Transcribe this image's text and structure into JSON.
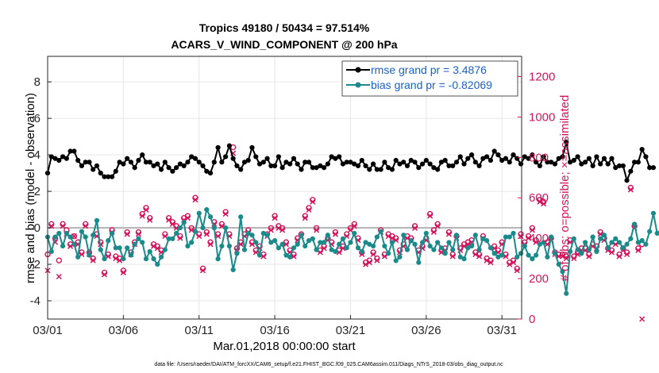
{
  "chart_data": {
    "type": "line",
    "title_line1": "Tropics 49180 / 50434 = 97.514%",
    "title_line2": "ACARS_V_WIND_COMPONENT @ 200 hPa",
    "xlabel": "Mar.01,2018 00:00:00 start",
    "ylabel_left": "rmse and bias (model - observation)",
    "ylabel_right": "# of obs: o=possible; ×=assimilated",
    "x_tick_labels": [
      "03/01",
      "03/06",
      "03/11",
      "03/16",
      "03/21",
      "03/26",
      "03/31"
    ],
    "y_left_ticks": [
      "-4",
      "-2",
      "0",
      "2",
      "4",
      "6",
      "8"
    ],
    "y_right_ticks": [
      "0",
      "200",
      "400",
      "600",
      "800",
      "1000",
      "1200"
    ],
    "xlim": [
      0,
      31.3
    ],
    "ylim_left": [
      -5,
      9.4
    ],
    "ylim_right": [
      0,
      1300
    ],
    "x_step_days": 0.25,
    "x_start": 0,
    "footnote": "data file: /Users/raeder/DAI/ATM_forcXX/CAM6_setup/f.e21.FHIST_BGC.f09_025.CAM6assim.011/Diags_NTrS_2018-03/obs_diag_output.nc",
    "colors": {
      "rmse": "#000000",
      "bias": "#1a8a8a",
      "counts": "#d6145c",
      "zero_line": "#b0b0b0",
      "legend_text": "#1a5fd0"
    },
    "series": [
      {
        "name": "rmse",
        "legend": "rmse grand pr = 3.4876",
        "values": [
          3.0,
          3.9,
          3.8,
          3.7,
          3.9,
          3.8,
          4.2,
          4.2,
          3.7,
          3.4,
          3.6,
          3.6,
          3.2,
          3.4,
          3.0,
          2.8,
          2.8,
          2.8,
          3.1,
          3.6,
          3.5,
          3.8,
          3.6,
          3.3,
          3.7,
          4.0,
          3.6,
          3.6,
          3.4,
          3.5,
          3.2,
          3.6,
          3.3,
          3.1,
          3.3,
          3.5,
          3.4,
          3.6,
          3.9,
          3.8,
          3.6,
          3.4,
          3.1,
          3.0,
          3.6,
          4.4,
          3.6,
          3.9,
          4.5,
          3.8,
          3.4,
          3.2,
          3.6,
          3.7,
          4.4,
          3.9,
          3.5,
          3.6,
          3.8,
          3.4,
          3.4,
          3.9,
          3.3,
          3.6,
          3.5,
          3.8,
          3.5,
          3.2,
          3.6,
          3.6,
          3.3,
          3.3,
          3.4,
          3.3,
          3.5,
          3.9,
          3.8,
          3.9,
          3.5,
          3.6,
          3.6,
          3.5,
          3.4,
          3.7,
          3.4,
          3.2,
          3.5,
          3.2,
          3.2,
          3.6,
          3.3,
          3.2,
          3.7,
          3.5,
          3.6,
          3.4,
          3.7,
          3.6,
          3.3,
          3.5,
          3.7,
          3.5,
          3.3,
          3.2,
          3.6,
          3.7,
          3.4,
          3.4,
          3.6,
          3.9,
          3.5,
          3.8,
          4.0,
          3.6,
          3.4,
          3.8,
          3.9,
          3.7,
          4.2,
          4.0,
          3.7,
          3.8,
          3.6,
          4.0,
          3.8,
          3.5,
          3.9,
          3.8,
          4.0,
          3.6,
          3.4,
          3.9,
          3.6,
          3.6,
          3.5,
          3.8,
          3.9,
          4.7,
          3.6,
          3.7,
          3.9,
          3.5,
          3.6,
          3.8,
          3.4,
          3.9,
          3.5,
          3.8,
          3.5,
          3.8,
          3.3,
          3.4,
          3.4,
          2.6,
          3.1,
          3.6,
          3.6,
          4.3,
          3.9,
          3.3,
          3.3
        ],
        "marker": "filled-circle"
      },
      {
        "name": "bias",
        "legend": "bias grand pr = -0.82069",
        "values": [
          -0.5,
          -1.3,
          -0.5,
          -0.3,
          -1.0,
          -0.3,
          -0.5,
          -0.9,
          -1.6,
          -0.2,
          -0.5,
          -1.5,
          -0.4,
          0.4,
          -1.2,
          -1.7,
          -0.7,
          -0.3,
          -1.1,
          -1.1,
          -1.7,
          -1.1,
          -1.5,
          -0.9,
          -0.6,
          -0.8,
          -1.7,
          -1.3,
          -1.7,
          -2.0,
          -1.6,
          -1.2,
          -0.6,
          -0.6,
          -0.3,
          0.0,
          0.3,
          -1.0,
          -0.8,
          -0.2,
          0.8,
          0.0,
          1.0,
          0.6,
          0.0,
          -1.7,
          -1.0,
          0.0,
          -1.0,
          -2.3,
          -1.4,
          0.6,
          -1.2,
          -0.3,
          -0.4,
          -0.8,
          -1.5,
          -0.3,
          -0.4,
          -0.8,
          -0.7,
          -1.1,
          -0.9,
          -1.5,
          -1.6,
          -1.1,
          -0.9,
          -0.4,
          -1.0,
          -0.7,
          -0.6,
          -1.2,
          -0.8,
          -0.8,
          -0.4,
          -1.2,
          -1.3,
          -0.9,
          -0.6,
          -1.1,
          -0.8,
          -0.3,
          -1.1,
          -1.3,
          -0.8,
          -0.9,
          -1.0,
          -0.5,
          -0.2,
          -1.0,
          -1.4,
          -0.8,
          -1.8,
          -1.6,
          -0.4,
          -1.2,
          -0.7,
          -0.9,
          -1.9,
          -0.8,
          -0.3,
          -1.0,
          -1.2,
          -0.8,
          -1.1,
          -1.4,
          -0.8,
          -1.2,
          -0.4,
          -1.6,
          -1.7,
          -1.1,
          -1.0,
          -0.4,
          -1.2,
          -0.6,
          -0.7,
          -1.1,
          -1.4,
          -1.6,
          -1.5,
          -0.5,
          -0.5,
          -0.3,
          -1.6,
          -1.4,
          -1.0,
          -1.5,
          -1.7,
          -1.5,
          -0.9,
          -0.8,
          -1.6,
          -0.5,
          -1.4,
          -2.0,
          -2.4,
          -3.6,
          -1.3,
          -0.6,
          -1.2,
          -1.4,
          -0.8,
          -1.2,
          -0.5,
          -1.3,
          -0.6,
          -0.4,
          -1.1,
          -0.8,
          -0.6,
          -0.8,
          -1.1,
          -0.9,
          -0.6,
          0.2,
          -0.8,
          -0.7,
          -0.9,
          -0.2,
          0.8,
          -0.3,
          -0.2
        ],
        "marker": "filled-circle"
      }
    ],
    "obs_possible": {
      "marker": "open-circle",
      "values": [
        320,
        470,
        400,
        290,
        470,
        440,
        370,
        410,
        380,
        330,
        470,
        330,
        300,
        420,
        380,
        230,
        320,
        440,
        310,
        300,
        240,
        430,
        330,
        380,
        430,
        520,
        550,
        500,
        370,
        360,
        340,
        420,
        500,
        480,
        460,
        410,
        500,
        510,
        450,
        600,
        420,
        250,
        430,
        380,
        480,
        420,
        470,
        530,
        420,
        850,
        350,
        380,
        420,
        440,
        380,
        340,
        360,
        320,
        420,
        450,
        510,
        460,
        450,
        380,
        340,
        320,
        400,
        420,
        510,
        550,
        590,
        450,
        340,
        360,
        400,
        380,
        430,
        340,
        360,
        420,
        450,
        470,
        400,
        330,
        280,
        290,
        330,
        300,
        440,
        320,
        420,
        410,
        400,
        340,
        370,
        410,
        400,
        460,
        340,
        360,
        400,
        520,
        440,
        470,
        340,
        350,
        430,
        320,
        410,
        350,
        370,
        380,
        390,
        330,
        320,
        410,
        300,
        290,
        360,
        340,
        380,
        320,
        280,
        290,
        250,
        420,
        380,
        410,
        450,
        390,
        590,
        580,
        380,
        400,
        330,
        320,
        320,
        310,
        390,
        310,
        330,
        350,
        350,
        320,
        370,
        360,
        430,
        400,
        350,
        340,
        380,
        320,
        350,
        330,
        650,
        460,
        350,
        370
      ]
    },
    "obs_assimilated": {
      "marker": "x-cross",
      "values": [
        240,
        460,
        380,
        210,
        460,
        420,
        360,
        410,
        370,
        320,
        460,
        320,
        290,
        410,
        370,
        220,
        310,
        430,
        300,
        290,
        230,
        420,
        320,
        370,
        420,
        510,
        540,
        490,
        360,
        350,
        330,
        410,
        490,
        470,
        450,
        400,
        490,
        500,
        440,
        590,
        410,
        240,
        420,
        370,
        470,
        410,
        460,
        520,
        410,
        820,
        340,
        370,
        410,
        430,
        370,
        330,
        350,
        310,
        410,
        440,
        500,
        450,
        440,
        370,
        330,
        310,
        390,
        410,
        500,
        540,
        580,
        440,
        330,
        350,
        390,
        370,
        420,
        330,
        350,
        410,
        440,
        460,
        390,
        320,
        270,
        280,
        320,
        290,
        430,
        310,
        410,
        400,
        390,
        330,
        360,
        400,
        390,
        450,
        330,
        350,
        390,
        510,
        430,
        460,
        330,
        340,
        420,
        310,
        400,
        340,
        360,
        370,
        380,
        320,
        310,
        400,
        290,
        280,
        350,
        330,
        370,
        310,
        270,
        280,
        240,
        410,
        370,
        400,
        440,
        380,
        580,
        570,
        370,
        390,
        320,
        310,
        310,
        300,
        380,
        300,
        320,
        340,
        340,
        310,
        360,
        350,
        420,
        390,
        340,
        330,
        370,
        310,
        340,
        320,
        640,
        450,
        340,
        0
      ]
    }
  }
}
